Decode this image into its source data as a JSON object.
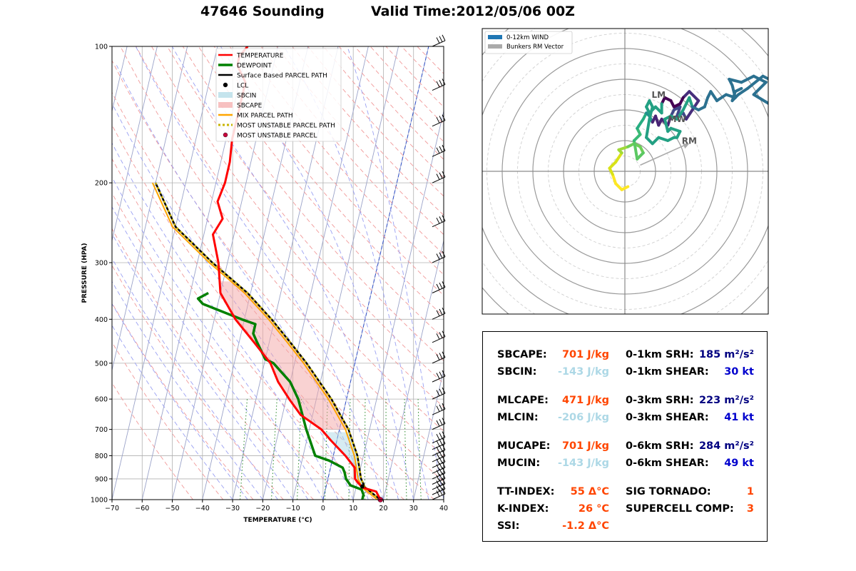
{
  "header": {
    "station": "47646 Sounding",
    "valid_time": "Valid Time:2012/05/06 00Z"
  },
  "chart_data": [
    {
      "type": "line",
      "name": "skew-t",
      "xlabel": "TEMPERATURE (°C)",
      "ylabel": "PRESSURE (HPA)",
      "xlim": [
        -70,
        40
      ],
      "ylim": [
        1000,
        100
      ],
      "x_ticks": [
        -70,
        -60,
        -50,
        -40,
        -30,
        -20,
        -10,
        0,
        10,
        20,
        30,
        40
      ],
      "y_ticks": [
        100,
        200,
        300,
        400,
        500,
        600,
        700,
        800,
        900,
        1000
      ],
      "legend": {
        "placement": "top-center",
        "entries": [
          {
            "label": "TEMPERATURE",
            "color": "#ff0000",
            "kind": "line"
          },
          {
            "label": "DEWPOINT",
            "color": "#008000",
            "kind": "thickline"
          },
          {
            "label": "Surface Based PARCEL PATH",
            "color": "#000000",
            "kind": "line"
          },
          {
            "label": "LCL",
            "color": "#000000",
            "kind": "dot"
          },
          {
            "label": "SBCIN",
            "color": "#add8e6",
            "kind": "patch"
          },
          {
            "label": "SBCAPE",
            "color": "#f4a6a6",
            "kind": "patch"
          },
          {
            "label": "MIX PARCEL PATH",
            "color": "#ffa500",
            "kind": "line"
          },
          {
            "label": "MOST UNSTABLE PARCEL PATH",
            "color": "#c8b400",
            "kind": "dotted"
          },
          {
            "label": "MOST UNSTABLE PARCEL",
            "color": "#c8003c",
            "kind": "dot"
          }
        ]
      },
      "series": [
        {
          "name": "TEMPERATURE",
          "color": "#ff0000",
          "points": [
            [
              19,
              1000
            ],
            [
              17,
              960
            ],
            [
              12,
              940
            ],
            [
              9,
              900
            ],
            [
              8,
              850
            ],
            [
              4,
              800
            ],
            [
              -2,
              740
            ],
            [
              -6,
              700
            ],
            [
              -14,
              650
            ],
            [
              -19,
              600
            ],
            [
              -24,
              550
            ],
            [
              -28,
              500
            ],
            [
              -35,
              450
            ],
            [
              -43,
              400
            ],
            [
              -50,
              350
            ],
            [
              -53,
              300
            ],
            [
              -57,
              260
            ],
            [
              -55,
              240
            ],
            [
              -58,
              220
            ],
            [
              -57,
              200
            ],
            [
              -57,
              180
            ],
            [
              -58,
              160
            ],
            [
              -58,
              140
            ],
            [
              -58,
              120
            ],
            [
              -62,
              110
            ],
            [
              -62,
              105
            ],
            [
              -60,
              100
            ]
          ]
        },
        {
          "name": "DEWPOINT",
          "color": "#008000",
          "points": [
            [
              13,
              1000
            ],
            [
              13,
              975
            ],
            [
              12,
              950
            ],
            [
              8,
              930
            ],
            [
              6,
              900
            ],
            [
              5,
              870
            ],
            [
              4,
              850
            ],
            [
              -1,
              820
            ],
            [
              -6,
              800
            ],
            [
              -11,
              700
            ],
            [
              -16,
              600
            ],
            [
              -20,
              550
            ],
            [
              -27,
              500
            ],
            [
              -30,
              490
            ],
            [
              -34,
              450
            ],
            [
              -36,
              430
            ],
            [
              -36,
              410
            ],
            [
              -41,
              400
            ],
            [
              -55,
              370
            ],
            [
              -57,
              360
            ],
            [
              -54,
              350
            ]
          ]
        },
        {
          "name": "Surface Based PARCEL PATH",
          "color": "#000000",
          "points": [
            [
              19,
              1000
            ],
            [
              13,
              940
            ],
            [
              11,
              900
            ],
            [
              8,
              800
            ],
            [
              3,
              700
            ],
            [
              -5,
              600
            ],
            [
              -16,
              500
            ],
            [
              -23,
              450
            ],
            [
              -31,
              400
            ],
            [
              -41,
              350
            ],
            [
              -55,
              300
            ],
            [
              -70,
              250
            ],
            [
              -80,
              200
            ]
          ]
        },
        {
          "name": "MIX PARCEL PATH",
          "color": "#ffa500",
          "points": [
            [
              18,
              1000
            ],
            [
              12,
              940
            ],
            [
              10,
              900
            ],
            [
              7,
              800
            ],
            [
              2,
              700
            ],
            [
              -6,
              600
            ],
            [
              -17,
              500
            ],
            [
              -24,
              450
            ],
            [
              -32,
              400
            ],
            [
              -42,
              350
            ],
            [
              -56,
              300
            ],
            [
              -71,
              250
            ],
            [
              -81,
              200
            ]
          ]
        },
        {
          "name": "MOST UNSTABLE PARCEL PATH",
          "color": "#c8b400",
          "points": [
            [
              19,
              1000
            ],
            [
              13,
              940
            ],
            [
              11,
              900
            ],
            [
              8,
              800
            ],
            [
              3,
              700
            ],
            [
              -5,
              600
            ],
            [
              -16,
              500
            ],
            [
              -23,
              450
            ],
            [
              -31,
              400
            ],
            [
              -41,
              350
            ],
            [
              -55,
              300
            ],
            [
              -70,
              250
            ],
            [
              -80,
              200
            ]
          ]
        }
      ],
      "markers": {
        "lcl": {
          "t": 12,
          "p": 935
        },
        "most_unstable_parcel": {
          "t": 19,
          "p": 1000
        }
      },
      "wind_barb_pressures": [
        1000,
        975,
        950,
        925,
        900,
        875,
        850,
        825,
        800,
        775,
        750,
        700,
        650,
        600,
        550,
        500,
        450,
        400,
        350,
        300,
        250,
        200,
        175,
        150,
        125,
        100
      ]
    },
    {
      "type": "line",
      "name": "hodograph",
      "legend": {
        "placement": "top-left",
        "entries": [
          {
            "label": "0-12km WIND",
            "color": "#1f77b4"
          },
          {
            "label": "Bunkers RM Vector",
            "color": "#aaaaaa"
          }
        ]
      },
      "annotations": [
        {
          "text": "LM",
          "u": 11,
          "v": 24
        },
        {
          "text": "MW",
          "u": 17,
          "v": 16
        },
        {
          "text": "RM",
          "u": 21,
          "v": 9
        }
      ],
      "rm_vector": [
        21,
        9
      ],
      "u_range": [
        -50,
        50
      ],
      "v_range": [
        -50,
        50
      ],
      "ring_step_kt": 10,
      "trace": [
        [
          1,
          -5
        ],
        [
          -1,
          -6
        ],
        [
          -3,
          -4
        ],
        [
          -4,
          -1
        ],
        [
          -5,
          1
        ],
        [
          -3,
          3
        ],
        [
          -1,
          6
        ],
        [
          -2,
          7
        ],
        [
          1,
          8
        ],
        [
          3,
          9
        ],
        [
          5,
          8
        ],
        [
          6,
          6
        ],
        [
          4,
          4
        ],
        [
          3,
          10
        ],
        [
          5,
          12
        ],
        [
          4,
          14
        ],
        [
          6,
          17
        ],
        [
          7,
          19
        ],
        [
          8,
          18
        ],
        [
          9,
          16
        ],
        [
          10,
          18
        ],
        [
          11,
          15
        ],
        [
          12,
          17
        ],
        [
          14,
          15
        ],
        [
          15,
          18
        ],
        [
          16,
          20
        ],
        [
          18,
          21
        ],
        [
          17,
          18
        ],
        [
          19,
          19
        ],
        [
          20,
          17
        ],
        [
          22,
          20
        ],
        [
          24,
          23
        ],
        [
          21,
          26
        ],
        [
          19,
          24
        ],
        [
          18,
          22
        ],
        [
          16,
          21
        ],
        [
          15,
          23
        ],
        [
          13,
          24
        ],
        [
          12,
          22
        ],
        [
          12,
          19
        ],
        [
          10,
          21
        ],
        [
          9,
          20
        ],
        [
          8,
          19
        ],
        [
          7,
          21
        ],
        [
          8,
          23
        ],
        [
          9,
          21
        ],
        [
          8,
          17
        ],
        [
          7,
          11
        ],
        [
          9,
          9
        ],
        [
          11,
          11
        ],
        [
          14,
          10
        ],
        [
          16,
          11
        ],
        [
          17,
          11
        ],
        [
          18,
          13
        ],
        [
          15,
          14
        ],
        [
          14,
          13
        ],
        [
          13,
          17
        ],
        [
          15,
          18
        ],
        [
          17,
          17
        ],
        [
          19,
          20
        ],
        [
          21,
          24
        ],
        [
          22,
          21
        ],
        [
          24,
          20
        ],
        [
          26,
          21
        ],
        [
          27,
          24
        ],
        [
          28,
          26
        ],
        [
          30,
          23
        ],
        [
          33,
          25
        ],
        [
          36,
          24
        ],
        [
          35,
          28
        ],
        [
          34,
          30
        ],
        [
          38,
          29
        ],
        [
          42,
          31
        ],
        [
          44,
          30
        ],
        [
          46,
          29
        ],
        [
          42,
          25
        ],
        [
          47,
          22
        ],
        [
          49,
          25
        ],
        [
          47,
          30
        ],
        [
          45,
          31
        ],
        [
          40,
          27
        ],
        [
          37,
          25
        ],
        [
          35,
          23
        ],
        [
          36,
          26
        ],
        [
          38,
          27
        ]
      ]
    }
  ],
  "stats": {
    "left": [
      {
        "label": "SBCAPE:",
        "value": "701 J/kg",
        "color": "#ff4500"
      },
      {
        "label": "SBCIN:",
        "value": "-143 J/kg",
        "color": "#add8e6"
      },
      {
        "label": "MLCAPE:",
        "value": "471 J/kg",
        "color": "#ff4500"
      },
      {
        "label": "MLCIN:",
        "value": "-206 J/kg",
        "color": "#add8e6"
      },
      {
        "label": "MUCAPE:",
        "value": "701 J/kg",
        "color": "#ff4500"
      },
      {
        "label": "MUCIN:",
        "value": "-143 J/kg",
        "color": "#add8e6"
      },
      {
        "label": "TT-INDEX:",
        "value": "55 Δ°C",
        "color": "#ff4500"
      },
      {
        "label": "K-INDEX:",
        "value": "26 °C",
        "color": "#ff4500"
      },
      {
        "label": "SSI:",
        "value": "-1.2 Δ°C",
        "color": "#ff4500"
      }
    ],
    "right": [
      {
        "label": "0-1km SRH:",
        "value": "185 m²/s²",
        "color": "#000080"
      },
      {
        "label": "0-1km SHEAR:",
        "value": "30 kt",
        "color": "#0000cd"
      },
      {
        "label": "0-3km SRH:",
        "value": "223 m²/s²",
        "color": "#000080"
      },
      {
        "label": "0-3km SHEAR:",
        "value": "41 kt",
        "color": "#0000cd"
      },
      {
        "label": "0-6km SRH:",
        "value": "284 m²/s²",
        "color": "#000080"
      },
      {
        "label": "0-6km SHEAR:",
        "value": "49 kt",
        "color": "#0000cd"
      },
      {
        "label": "SIG TORNADO:",
        "value": "1",
        "color": "#ff4500"
      },
      {
        "label": "SUPERCELL COMP:",
        "value": "3",
        "color": "#ff4500"
      }
    ]
  }
}
